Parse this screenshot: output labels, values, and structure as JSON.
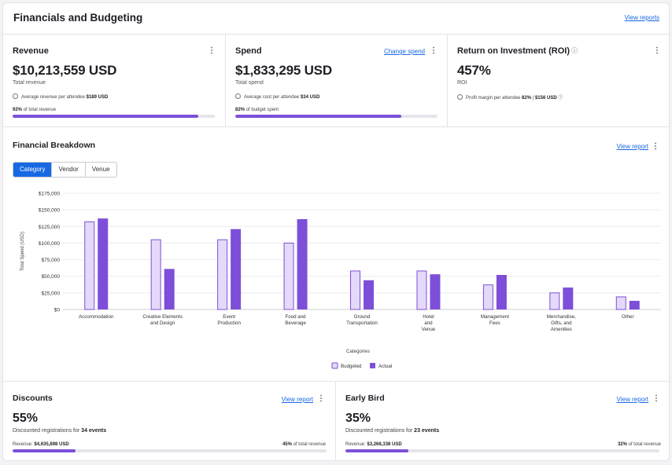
{
  "header": {
    "title": "Financials and Budgeting",
    "view_reports": "View reports"
  },
  "colors": {
    "accent": "#7d4fd8",
    "budgeted_fill": "#e4d9f8",
    "link": "#1768e3",
    "tab_active": "#1768e3"
  },
  "revenue": {
    "title": "Revenue",
    "value": "$10,213,559 USD",
    "subtitle": "Total revenue",
    "meta_label": "Average revenue per attendee",
    "meta_value": "$189 USD",
    "pct_value": "92%",
    "pct_label": "of total revenue",
    "progress": 0.92
  },
  "spend": {
    "title": "Spend",
    "change_link": "Change spend",
    "value": "$1,833,295 USD",
    "subtitle": "Total spend",
    "meta_label": "Average cost per attendee",
    "meta_value": "$34 USD",
    "pct_value": "82%",
    "pct_label": "of budget spent",
    "progress": 0.82
  },
  "roi": {
    "title": "Return on Investment (ROI)",
    "info_icon": "ⓘ",
    "value": "457%",
    "subtitle": "ROI",
    "meta_label": "Profit margin per attendee",
    "meta_pct": "82%",
    "separator": "|",
    "meta_value": "$156 USD"
  },
  "breakdown": {
    "title": "Financial Breakdown",
    "view_report": "View report",
    "tabs": [
      "Category",
      "Vendor",
      "Venue"
    ],
    "active_tab": 0
  },
  "chart_data": {
    "type": "bar",
    "title": "",
    "xlabel": "Categories",
    "ylabel": "Total Spend (USD)",
    "ylim": [
      0,
      175000
    ],
    "y_ticks": [
      "$0",
      "$25,000",
      "$50,000",
      "$75,000",
      "$100,000",
      "$125,000",
      "$150,000",
      "$175,000"
    ],
    "categories": [
      [
        "Accommodation"
      ],
      [
        "Creative Elements",
        "and Design"
      ],
      [
        "Event",
        "Production"
      ],
      [
        "Food and",
        "Beverage"
      ],
      [
        "Ground",
        "Transportation"
      ],
      [
        "Hotel",
        "and",
        "Venue"
      ],
      [
        "Management",
        "Fees"
      ],
      [
        "Merchandise,",
        "Gifts, and",
        "Amenities"
      ],
      [
        "Other"
      ]
    ],
    "series": [
      {
        "name": "Budgeted",
        "values": [
          132000,
          105000,
          105000,
          100000,
          58000,
          58000,
          37000,
          25000,
          19000
        ]
      },
      {
        "name": "Actual",
        "values": [
          137000,
          61000,
          121000,
          136000,
          44000,
          53000,
          52000,
          33000,
          13000
        ]
      }
    ],
    "legend_position": "bottom-center",
    "grid": true
  },
  "discounts": {
    "title": "Discounts",
    "view_report": "View report",
    "value": "55%",
    "sub_label": "Discounted registrations for",
    "sub_value": "34 events",
    "left_label": "Revenue:",
    "left_value": "$4,635,898 USD",
    "right_value": "45%",
    "right_label": "of total revenue",
    "progress": 0.2
  },
  "earlybird": {
    "title": "Early Bird",
    "view_report": "View report",
    "value": "35%",
    "sub_label": "Discounted registrations for",
    "sub_value": "23 events",
    "left_label": "Revenue:",
    "left_value": "$3,268,338 USD",
    "right_value": "32%",
    "right_label": "of total revenue",
    "progress": 0.2
  },
  "icons": {
    "kebab": "⋮",
    "user": "user-circle-icon",
    "info": "info-icon"
  }
}
